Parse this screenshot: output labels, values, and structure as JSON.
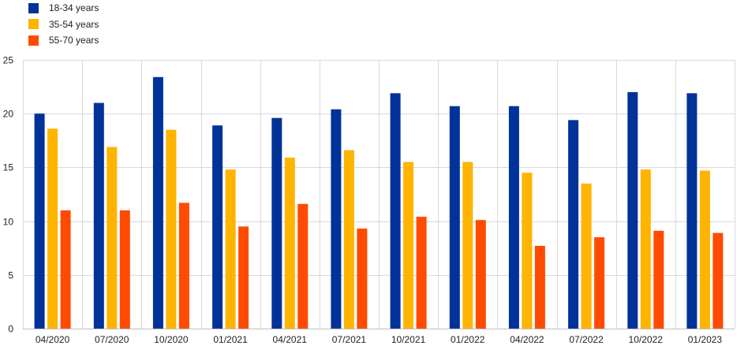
{
  "chart_data": {
    "type": "bar",
    "categories": [
      "04/2020",
      "07/2020",
      "10/2020",
      "01/2021",
      "04/2021",
      "07/2021",
      "10/2021",
      "01/2022",
      "04/2022",
      "07/2022",
      "10/2022",
      "01/2023"
    ],
    "series": [
      {
        "name": "18-34 years",
        "color": "#003299",
        "values": [
          20.0,
          21.0,
          23.4,
          18.9,
          19.6,
          20.4,
          21.9,
          20.7,
          20.7,
          19.4,
          22.0,
          21.9
        ]
      },
      {
        "name": "35-54 years",
        "color": "#FFB400",
        "values": [
          18.6,
          16.9,
          18.5,
          14.8,
          15.9,
          16.6,
          15.5,
          15.5,
          14.5,
          13.5,
          14.8,
          14.7
        ]
      },
      {
        "name": "55-70 years",
        "color": "#FF4B00",
        "values": [
          11.0,
          11.0,
          11.7,
          9.5,
          11.6,
          9.3,
          10.4,
          10.1,
          7.7,
          8.5,
          9.1,
          8.9
        ]
      }
    ],
    "yticks": [
      0,
      5,
      10,
      15,
      20,
      25
    ],
    "ylim": [
      0,
      25
    ],
    "grid": true,
    "legend_position": "top-left"
  }
}
